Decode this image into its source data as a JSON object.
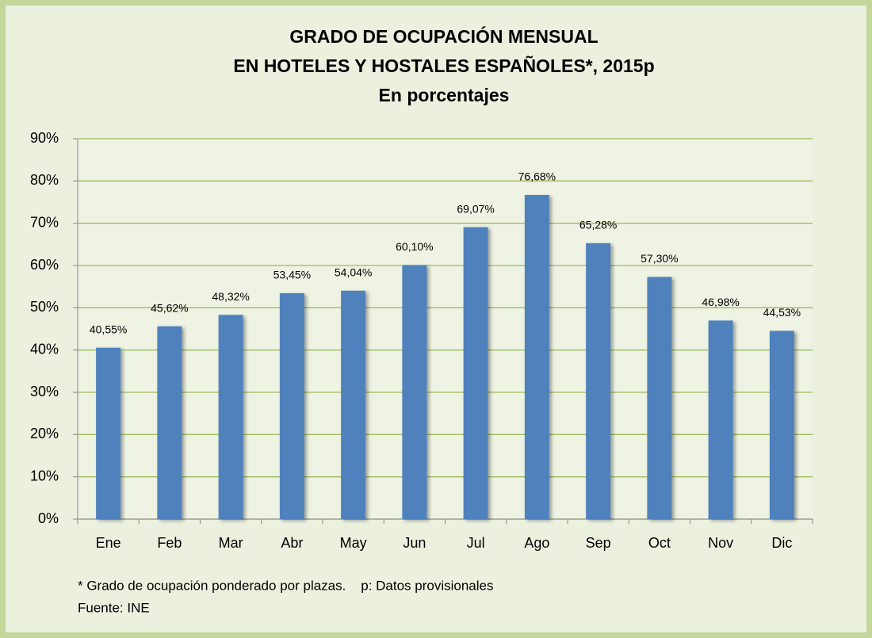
{
  "chart_data": {
    "type": "bar",
    "title": [
      "GRADO DE OCUPACIÓN MENSUAL",
      "EN HOTELES Y HOSTALES ESPAÑOLES*, 2015p"
    ],
    "subtitle": "En porcentajes",
    "categories": [
      "Ene",
      "Feb",
      "Mar",
      "Abr",
      "May",
      "Jun",
      "Jul",
      "Ago",
      "Sep",
      "Oct",
      "Nov",
      "Dic"
    ],
    "values": [
      40.55,
      45.62,
      48.32,
      53.45,
      54.04,
      60.1,
      69.07,
      76.68,
      65.28,
      57.3,
      46.98,
      44.53
    ],
    "value_labels": [
      "40,55%",
      "45,62%",
      "48,32%",
      "53,45%",
      "54,04%",
      "60,10%",
      "69,07%",
      "76,68%",
      "65,28%",
      "57,30%",
      "46,98%",
      "44,53%"
    ],
    "color": "#4f81bd",
    "ylim": [
      0,
      90
    ],
    "yticks": [
      {
        "value": 0,
        "label": "0%"
      },
      {
        "value": 10,
        "label": "10%"
      },
      {
        "value": 20,
        "label": "20%"
      },
      {
        "value": 30,
        "label": "30%"
      },
      {
        "value": 40,
        "label": "40%"
      },
      {
        "value": 50,
        "label": "50%"
      },
      {
        "value": 60,
        "label": "60%"
      },
      {
        "value": 70,
        "label": "70%"
      },
      {
        "value": 80,
        "label": "80%"
      },
      {
        "value": 90,
        "label": "90%"
      }
    ],
    "grid": true,
    "notes": [
      "* Grado de ocupación ponderado por plazas.    p: Datos provisionales",
      "Fuente: INE"
    ]
  }
}
